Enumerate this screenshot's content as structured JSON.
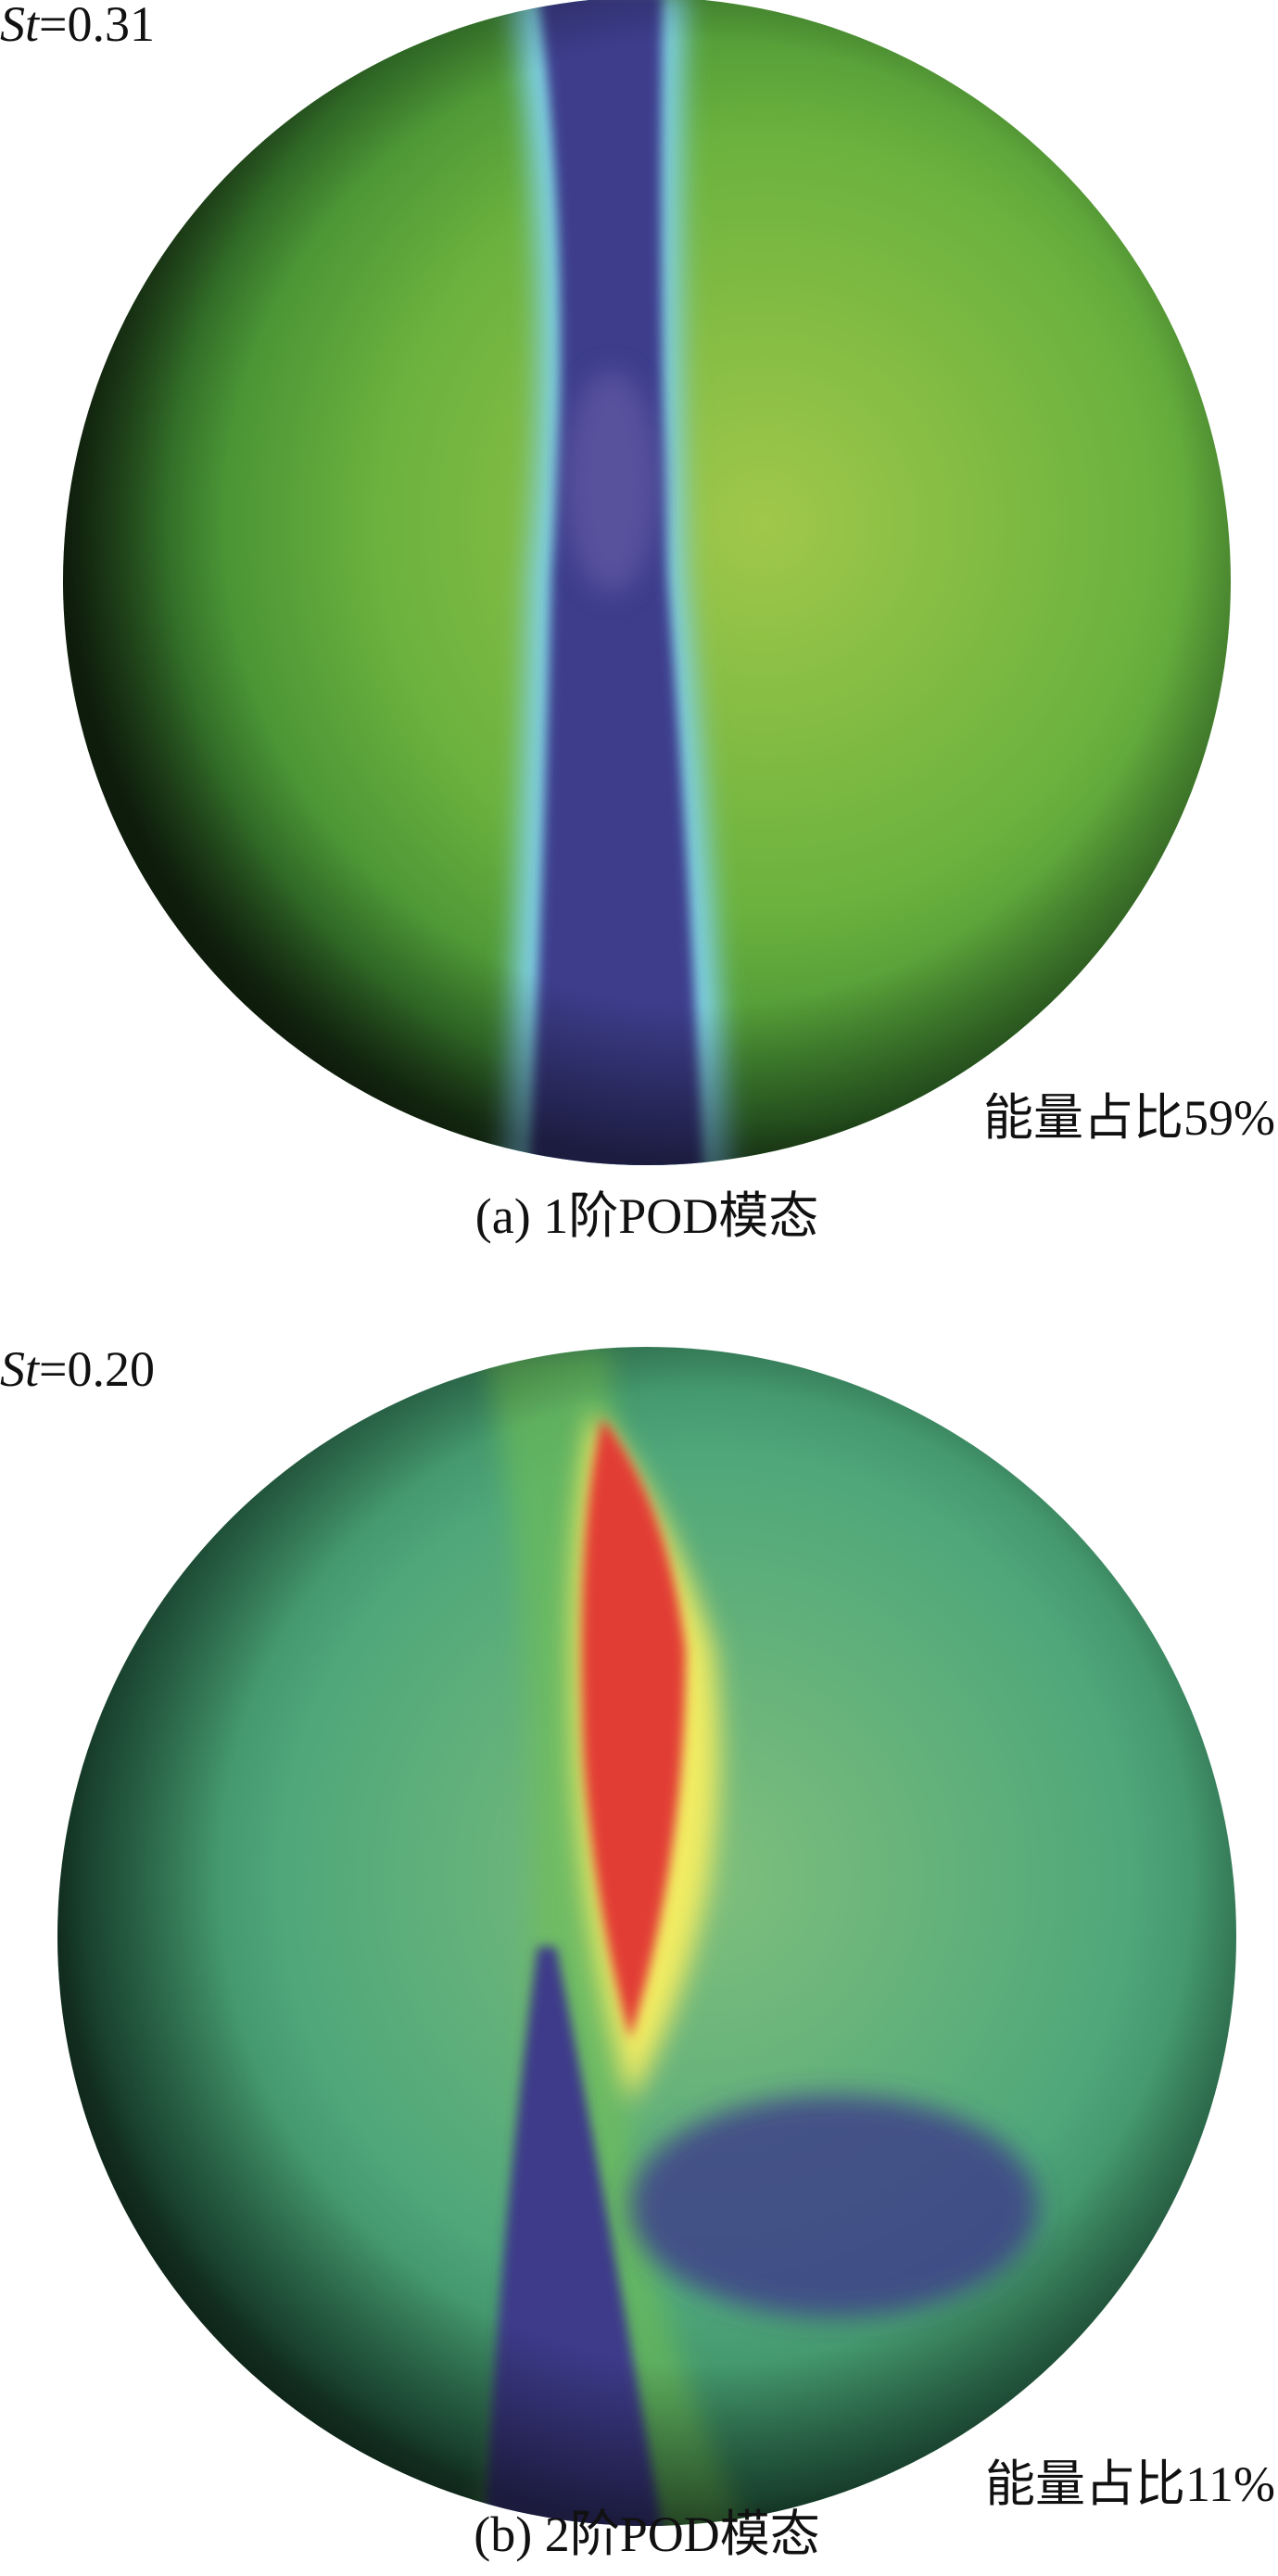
{
  "panels": [
    {
      "st_symbol": "St",
      "st_value": "=0.31",
      "energy": "能量占比59%",
      "caption": "(a) 1阶POD模态"
    },
    {
      "st_symbol": "St",
      "st_value": "=0.20",
      "energy": "能量占比11%",
      "caption": "(b) 2阶POD模态"
    }
  ]
}
